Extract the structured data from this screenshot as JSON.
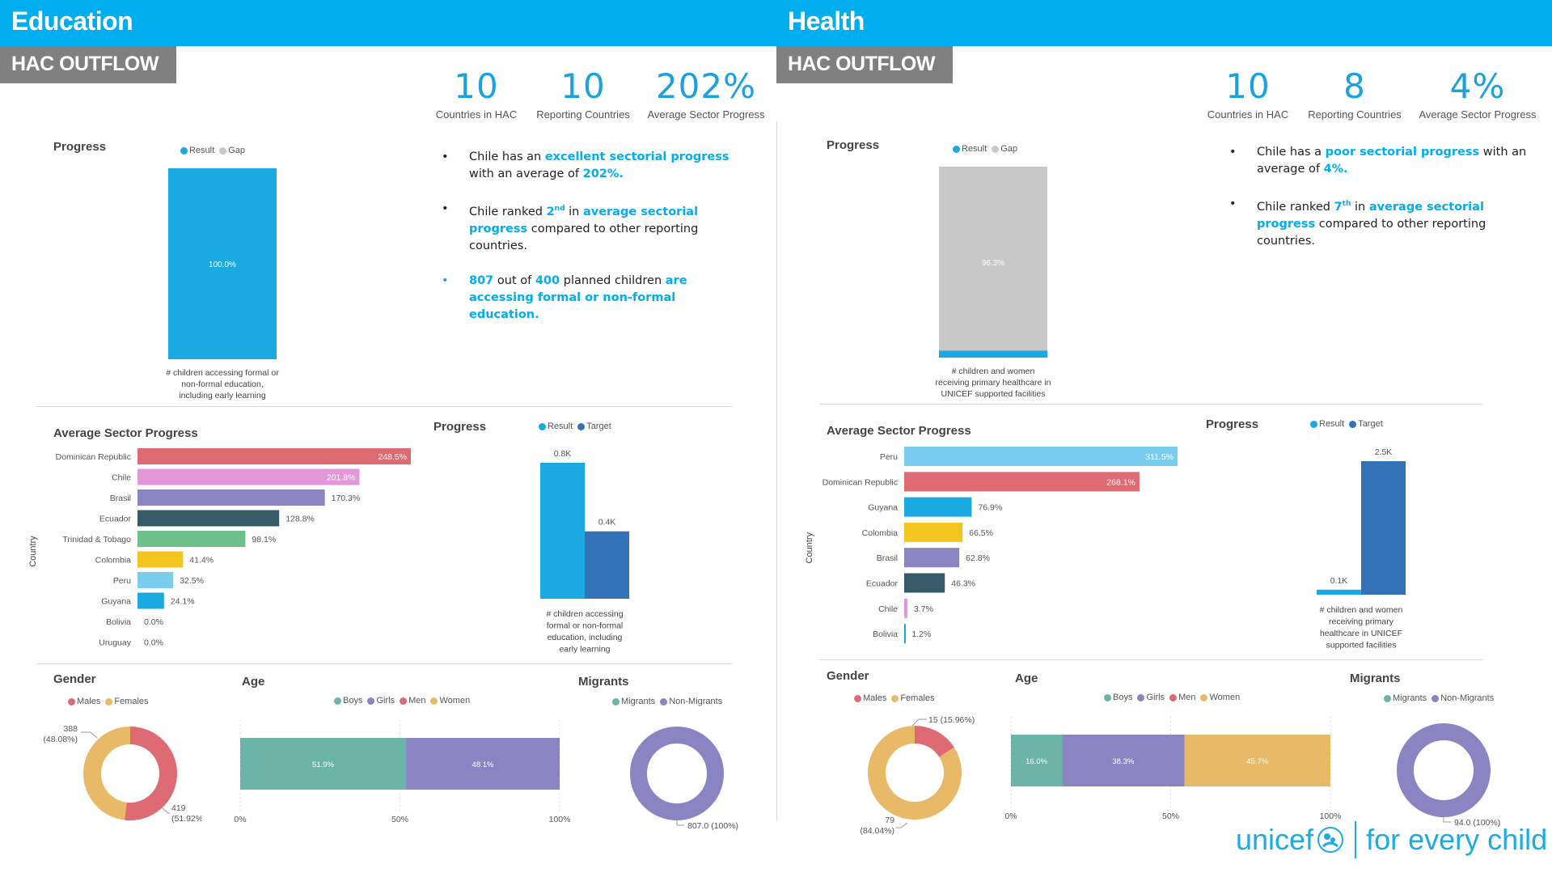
{
  "colors": {
    "brand_blue": "#00AEEF",
    "kpi_blue": "#1BA1DC",
    "target_blue": "#3372B6",
    "gap_gray": "#C8C8C8",
    "header_gray": "#808080"
  },
  "education": {
    "title": "Education",
    "subtitle": "HAC OUTFLOW",
    "kpis": [
      {
        "value": "10",
        "label": "Countries in HAC"
      },
      {
        "value": "10",
        "label": "Reporting Countries"
      },
      {
        "value": "202%",
        "label": "Average Sector Progress"
      }
    ],
    "bullets": {
      "b1": {
        "pre": "Chile has an ",
        "hl1": "excellent sectorial progress",
        "mid": " with an average of ",
        "hl2": "202%."
      },
      "b2": {
        "pre": "Chile ranked ",
        "rank": "2",
        "sup": "nd",
        "mid": " in ",
        "hl": "average sectorial progress",
        "post": " compared to other reporting countries."
      },
      "b3": {
        "hl1": "807",
        "mid1": " out of ",
        "hl2": "400",
        "mid2": " planned children ",
        "hl3": "are accessing formal or non-formal education."
      }
    },
    "progress_title": "Progress",
    "progress_legend": [
      "Result",
      "Gap"
    ],
    "progress_label": "100.0%",
    "progress_caption": [
      "# children accessing formal or",
      "non-formal education,",
      "including early learning"
    ],
    "asp_title": "Average Sector Progress",
    "asp_axis": "Country",
    "rt_title": "Progress",
    "rt_legend": [
      "Result",
      "Target"
    ],
    "rt_caption": [
      "# children accessing",
      "formal or non-formal",
      "education, including",
      "early learning"
    ],
    "gender_title": "Gender",
    "gender_legend": [
      "Males",
      "Females"
    ],
    "age_title": "Age",
    "age_legend": [
      "Boys",
      "Girls",
      "Men",
      "Women"
    ],
    "age_ticks": [
      "0%",
      "50%",
      "100%"
    ],
    "migrants_title": "Migrants",
    "migrants_legend": [
      "Migrants",
      "Non-Migrants"
    ]
  },
  "health": {
    "title": "Health",
    "subtitle": "HAC OUTFLOW",
    "kpis": [
      {
        "value": "10",
        "label": "Countries in HAC"
      },
      {
        "value": "8",
        "label": "Reporting Countries"
      },
      {
        "value": "4%",
        "label": "Average Sector Progress"
      }
    ],
    "bullets": {
      "b1": {
        "pre": "Chile has a ",
        "hl1": "poor sectorial progress",
        "mid": " with an average of ",
        "hl2": "4%."
      },
      "b2": {
        "pre": "Chile ranked ",
        "rank": "7",
        "sup": "th",
        "mid": " in ",
        "hl": "average sectorial progress",
        "post": " compared to other reporting countries."
      }
    },
    "progress_title": "Progress",
    "progress_legend": [
      "Result",
      "Gap"
    ],
    "progress_label": "96.3%",
    "progress_caption": [
      "# children and women",
      "receiving primary healthcare in",
      "UNICEF supported facilities"
    ],
    "asp_title": "Average Sector Progress",
    "asp_axis": "Country",
    "rt_title": "Progress",
    "rt_legend": [
      "Result",
      "Target"
    ],
    "rt_caption": [
      "# children and women",
      "receiving primary",
      "healthcare in UNICEF",
      "supported facilities"
    ],
    "gender_title": "Gender",
    "gender_legend": [
      "Males",
      "Females"
    ],
    "age_title": "Age",
    "age_legend": [
      "Boys",
      "Girls",
      "Men",
      "Women"
    ],
    "age_ticks": [
      "0%",
      "50%",
      "100%"
    ],
    "migrants_title": "Migrants",
    "migrants_legend": [
      "Migrants",
      "Non-Migrants"
    ]
  },
  "logo": {
    "brand": "unicef",
    "tagline": "for every child"
  },
  "chart_data": [
    {
      "id": "edu-progress",
      "type": "bar",
      "title": "Progress",
      "stacked": true,
      "categories": [
        "# children accessing formal or non-formal education, including early learning"
      ],
      "series": [
        {
          "name": "Result",
          "values": [
            100.0
          ],
          "color": "#1BA9E1"
        },
        {
          "name": "Gap",
          "values": [
            0.0
          ],
          "color": "#C8C8C8"
        }
      ],
      "data_labels": [
        "100.0%"
      ],
      "ylim": [
        0,
        100
      ]
    },
    {
      "id": "edu-asp",
      "type": "bar",
      "orientation": "horizontal",
      "title": "Average Sector Progress",
      "ylabel": "Country",
      "categories": [
        "Dominican Republic",
        "Chile",
        "Brasil",
        "Ecuador",
        "Trinidad & Tobago",
        "Colombia",
        "Peru",
        "Guyana",
        "Bolivia",
        "Uruguay"
      ],
      "values": [
        248.5,
        201.8,
        170.3,
        128.8,
        98.1,
        41.4,
        32.5,
        24.1,
        0.0,
        0.0
      ],
      "data_labels": [
        "248.5%",
        "201.8%",
        "170.3%",
        "128.8%",
        "98.1%",
        "41.4%",
        "32.5%",
        "24.1%",
        "0.0%",
        "0.0%"
      ],
      "colors": [
        "#DE6A73",
        "#E497D8",
        "#8B84C2",
        "#375A68",
        "#6DC08A",
        "#F2C61F",
        "#7ACDEF",
        "#1BA9E1",
        "#cccccc",
        "#cccccc"
      ],
      "xlim": [
        0,
        248.5
      ]
    },
    {
      "id": "edu-result-target",
      "type": "bar",
      "title": "Progress",
      "categories": [
        "# children accessing formal or non-formal education, including early learning"
      ],
      "series": [
        {
          "name": "Result",
          "values": [
            807
          ],
          "color": "#1BA9E1"
        },
        {
          "name": "Target",
          "values": [
            400
          ],
          "color": "#3372B6"
        }
      ],
      "data_labels": [
        "0.8K",
        "0.4K"
      ]
    },
    {
      "id": "edu-gender",
      "type": "pie",
      "donut": true,
      "title": "Gender",
      "labels": [
        "Males",
        "Females"
      ],
      "values": [
        419,
        388
      ],
      "data_labels": [
        "419 (51.92%)",
        "388 (48.08%)"
      ],
      "colors": [
        "#DE6A73",
        "#E8BA67"
      ]
    },
    {
      "id": "edu-age",
      "type": "bar",
      "stacked": true,
      "orientation": "horizontal",
      "title": "Age",
      "series": [
        {
          "name": "Boys",
          "values": [
            51.9
          ],
          "color": "#6CB3A8"
        },
        {
          "name": "Girls",
          "values": [
            48.1
          ],
          "color": "#8B84C2"
        },
        {
          "name": "Men",
          "values": [
            0
          ],
          "color": "#DE6A73"
        },
        {
          "name": "Women",
          "values": [
            0
          ],
          "color": "#E8BA67"
        }
      ],
      "data_labels": [
        "51.9%",
        "48.1%"
      ],
      "xticks": [
        "0%",
        "50%",
        "100%"
      ],
      "xlim": [
        0,
        100
      ]
    },
    {
      "id": "edu-migrants",
      "type": "pie",
      "donut": true,
      "title": "Migrants",
      "labels": [
        "Migrants",
        "Non-Migrants"
      ],
      "values": [
        0,
        807.0
      ],
      "data_labels": [
        "",
        "807.0 (100%)"
      ],
      "colors": [
        "#6CB3A8",
        "#8B84C2"
      ]
    },
    {
      "id": "hlt-progress",
      "type": "bar",
      "title": "Progress",
      "stacked": true,
      "categories": [
        "# children and women receiving primary healthcare in UNICEF supported facilities"
      ],
      "series": [
        {
          "name": "Result",
          "values": [
            3.7
          ],
          "color": "#1BA9E1"
        },
        {
          "name": "Gap",
          "values": [
            96.3
          ],
          "color": "#C8C8C8"
        }
      ],
      "data_labels": [
        "96.3%"
      ],
      "ylim": [
        0,
        100
      ]
    },
    {
      "id": "hlt-asp",
      "type": "bar",
      "orientation": "horizontal",
      "title": "Average Sector Progress",
      "ylabel": "Country",
      "categories": [
        "Peru",
        "Dominican Republic",
        "Guyana",
        "Colombia",
        "Brasil",
        "Ecuador",
        "Chile",
        "Bolivia"
      ],
      "values": [
        311.5,
        268.1,
        76.9,
        66.5,
        62.8,
        46.3,
        3.7,
        1.2
      ],
      "data_labels": [
        "311.5%",
        "268.1%",
        "76.9%",
        "66.5%",
        "62.8%",
        "46.3%",
        "3.7%",
        "1.2%"
      ],
      "colors": [
        "#7ACDEF",
        "#DE6A73",
        "#1BA9E1",
        "#F2C61F",
        "#8B84C2",
        "#375A68",
        "#E497D8",
        "#1BA9E1"
      ],
      "xlim": [
        0,
        268.1
      ]
    },
    {
      "id": "hlt-result-target",
      "type": "bar",
      "title": "Progress",
      "categories": [
        "# children and women receiving primary healthcare in UNICEF supported facilities"
      ],
      "series": [
        {
          "name": "Result",
          "values": [
            94
          ],
          "color": "#1BA9E1"
        },
        {
          "name": "Target",
          "values": [
            2500
          ],
          "color": "#3372B6"
        }
      ],
      "data_labels": [
        "0.1K",
        "2.5K"
      ]
    },
    {
      "id": "hlt-gender",
      "type": "pie",
      "donut": true,
      "title": "Gender",
      "labels": [
        "Males",
        "Females"
      ],
      "values": [
        15,
        79
      ],
      "data_labels": [
        "15 (15.96%)",
        "79 (84.04%)"
      ],
      "colors": [
        "#DE6A73",
        "#E8BA67"
      ]
    },
    {
      "id": "hlt-age",
      "type": "bar",
      "stacked": true,
      "orientation": "horizontal",
      "title": "Age",
      "series": [
        {
          "name": "Boys",
          "values": [
            16.0
          ],
          "color": "#6CB3A8"
        },
        {
          "name": "Girls",
          "values": [
            38.3
          ],
          "color": "#8B84C2"
        },
        {
          "name": "Men",
          "values": [
            0
          ],
          "color": "#DE6A73"
        },
        {
          "name": "Women",
          "values": [
            45.7
          ],
          "color": "#E8BA67"
        }
      ],
      "data_labels": [
        "16.0%",
        "38.3%",
        "",
        "45.7%"
      ],
      "xticks": [
        "0%",
        "50%",
        "100%"
      ],
      "xlim": [
        0,
        100
      ]
    },
    {
      "id": "hlt-migrants",
      "type": "pie",
      "donut": true,
      "title": "Migrants",
      "labels": [
        "Migrants",
        "Non-Migrants"
      ],
      "values": [
        0,
        94.0
      ],
      "data_labels": [
        "",
        "94.0 (100%)"
      ],
      "colors": [
        "#6CB3A8",
        "#8B84C2"
      ]
    }
  ]
}
